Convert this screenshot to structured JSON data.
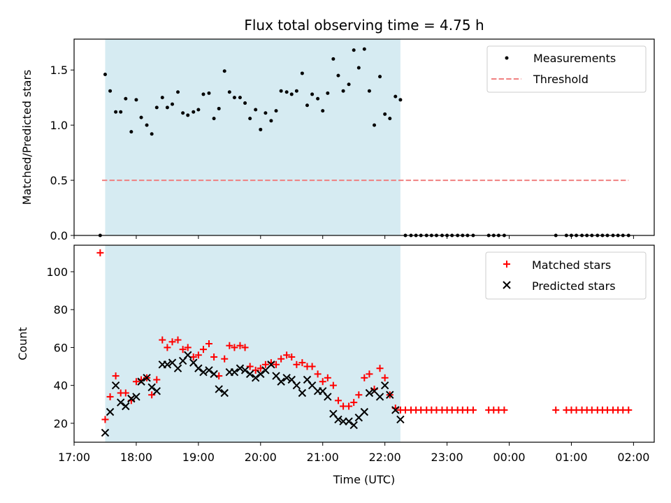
{
  "chart_data": [
    {
      "type": "scatter",
      "title": "Flux total observing time = 4.75 h",
      "xlabel": "",
      "ylabel": "Matched/Predicted stars",
      "ylim": [
        0,
        1.78
      ],
      "yticks": [
        0.0,
        0.5,
        1.0,
        1.5
      ],
      "ytick_labels": [
        "0.0",
        "0.5",
        "1.0",
        "1.5"
      ],
      "xlim_hours": [
        17.0,
        26.333
      ],
      "shaded_region_hours": [
        17.5,
        22.25
      ],
      "legend": [
        "Measurements",
        "Threshold"
      ],
      "legend_position": "top-right",
      "threshold": {
        "value": 0.5,
        "x_range_hours": [
          17.45,
          25.92
        ],
        "color": "#f08080"
      },
      "series": [
        {
          "name": "Measurements",
          "color": "#000000",
          "x_hours": [
            17.42,
            17.5,
            17.58,
            17.67,
            17.75,
            17.83,
            17.92,
            18.0,
            18.08,
            18.17,
            18.25,
            18.33,
            18.42,
            18.5,
            18.58,
            18.67,
            18.75,
            18.83,
            18.92,
            19.0,
            19.08,
            19.17,
            19.25,
            19.33,
            19.42,
            19.5,
            19.58,
            19.67,
            19.75,
            19.83,
            19.92,
            20.0,
            20.08,
            20.17,
            20.25,
            20.33,
            20.42,
            20.5,
            20.58,
            20.67,
            20.75,
            20.83,
            20.92,
            21.0,
            21.08,
            21.17,
            21.25,
            21.33,
            21.42,
            21.5,
            21.58,
            21.67,
            21.75,
            21.83,
            21.92,
            22.0,
            22.08,
            22.17,
            22.25,
            22.33,
            22.42,
            22.5,
            22.58,
            22.67,
            22.75,
            22.83,
            22.92,
            23.0,
            23.08,
            23.17,
            23.25,
            23.33,
            23.42,
            23.67,
            23.75,
            23.83,
            23.92,
            24.75,
            24.92,
            25.0,
            25.08,
            25.17,
            25.25,
            25.33,
            25.42,
            25.5,
            25.58,
            25.67,
            25.75,
            25.83,
            25.92
          ],
          "y": [
            0.0,
            1.46,
            1.31,
            1.12,
            1.12,
            1.24,
            0.94,
            1.23,
            1.07,
            1.0,
            0.92,
            1.16,
            1.25,
            1.16,
            1.19,
            1.3,
            1.11,
            1.09,
            1.12,
            1.14,
            1.28,
            1.29,
            1.06,
            1.15,
            1.49,
            1.3,
            1.25,
            1.25,
            1.2,
            1.06,
            1.14,
            0.96,
            1.11,
            1.04,
            1.13,
            1.31,
            1.3,
            1.28,
            1.31,
            1.47,
            1.18,
            1.28,
            1.24,
            1.13,
            1.29,
            1.6,
            1.45,
            1.31,
            1.37,
            1.68,
            1.52,
            1.69,
            1.31,
            1.0,
            1.44,
            1.1,
            1.06,
            1.26,
            1.23,
            0.0,
            0.0,
            0.0,
            0.0,
            0.0,
            0.0,
            0.0,
            0.0,
            0.0,
            0.0,
            0.0,
            0.0,
            0.0,
            0.0,
            0.0,
            0.0,
            0.0,
            0.0,
            0.0,
            0.0,
            0.0,
            0.0,
            0.0,
            0.0,
            0.0,
            0.0,
            0.0,
            0.0,
            0.0,
            0.0,
            0.0,
            0.0
          ]
        }
      ]
    },
    {
      "type": "scatter",
      "title": "",
      "xlabel": "Time (UTC)",
      "ylabel": "Count",
      "ylim": [
        10,
        114
      ],
      "yticks": [
        20,
        40,
        60,
        80,
        100
      ],
      "ytick_labels": [
        "20",
        "40",
        "60",
        "80",
        "100"
      ],
      "xlim_hours": [
        17.0,
        26.333
      ],
      "xticks_hours": [
        17,
        18,
        19,
        20,
        21,
        22,
        23,
        24,
        25,
        26
      ],
      "xtick_labels": [
        "17:00",
        "18:00",
        "19:00",
        "20:00",
        "21:00",
        "22:00",
        "23:00",
        "00:00",
        "01:00",
        "02:00"
      ],
      "shaded_region_hours": [
        17.5,
        22.25
      ],
      "legend": [
        "Matched stars",
        "Predicted stars"
      ],
      "legend_position": "top-right",
      "series": [
        {
          "name": "Matched stars",
          "marker": "plus",
          "color": "#ff0000",
          "x_hours": [
            17.42,
            17.5,
            17.58,
            17.67,
            17.75,
            17.83,
            17.92,
            18.0,
            18.08,
            18.17,
            18.25,
            18.33,
            18.42,
            18.5,
            18.58,
            18.67,
            18.75,
            18.83,
            18.92,
            19.0,
            19.08,
            19.17,
            19.25,
            19.33,
            19.42,
            19.5,
            19.58,
            19.67,
            19.75,
            19.83,
            19.92,
            20.0,
            20.08,
            20.17,
            20.25,
            20.33,
            20.42,
            20.5,
            20.58,
            20.67,
            20.75,
            20.83,
            20.92,
            21.0,
            21.08,
            21.17,
            21.25,
            21.33,
            21.42,
            21.5,
            21.58,
            21.67,
            21.75,
            21.83,
            21.92,
            22.0,
            22.08,
            22.17,
            22.25,
            22.33,
            22.42,
            22.5,
            22.58,
            22.67,
            22.75,
            22.83,
            22.92,
            23.0,
            23.08,
            23.17,
            23.25,
            23.33,
            23.42,
            23.67,
            23.75,
            23.83,
            23.92,
            24.75,
            24.92,
            25.0,
            25.08,
            25.17,
            25.25,
            25.33,
            25.42,
            25.5,
            25.58,
            25.67,
            25.75,
            25.83,
            25.92
          ],
          "y": [
            110,
            22,
            34,
            45,
            36,
            36,
            32,
            42,
            43,
            44,
            35,
            43,
            64,
            60,
            63,
            64,
            59,
            60,
            55,
            56,
            59,
            62,
            55,
            45,
            54,
            61,
            60,
            61,
            60,
            50,
            48,
            49,
            51,
            52,
            51,
            54,
            56,
            55,
            51,
            52,
            50,
            50,
            46,
            42,
            44,
            40,
            32,
            29,
            29,
            31,
            35,
            44,
            46,
            38,
            49,
            44,
            35,
            28,
            27,
            27,
            27,
            27,
            27,
            27,
            27,
            27,
            27,
            27,
            27,
            27,
            27,
            27,
            27,
            27,
            27,
            27,
            27,
            27,
            27,
            27,
            27,
            27,
            27,
            27,
            27,
            27,
            27,
            27,
            27,
            27,
            27
          ]
        },
        {
          "name": "Predicted stars",
          "marker": "x",
          "color": "#000000",
          "x_hours": [
            17.5,
            17.58,
            17.67,
            17.75,
            17.83,
            17.92,
            18.0,
            18.08,
            18.17,
            18.25,
            18.33,
            18.42,
            18.5,
            18.58,
            18.67,
            18.75,
            18.83,
            18.92,
            19.0,
            19.08,
            19.17,
            19.25,
            19.33,
            19.42,
            19.5,
            19.58,
            19.67,
            19.75,
            19.83,
            19.92,
            20.0,
            20.08,
            20.17,
            20.25,
            20.33,
            20.42,
            20.5,
            20.58,
            20.67,
            20.75,
            20.83,
            20.92,
            21.0,
            21.08,
            21.17,
            21.25,
            21.33,
            21.42,
            21.5,
            21.58,
            21.67,
            21.75,
            21.83,
            21.92,
            22.0,
            22.08,
            22.17,
            22.25
          ],
          "y": [
            15,
            26,
            40,
            31,
            29,
            33,
            34,
            42,
            44,
            39,
            37,
            51,
            51,
            52,
            49,
            53,
            56,
            52,
            49,
            47,
            48,
            46,
            38,
            36,
            47,
            47,
            49,
            48,
            46,
            44,
            46,
            48,
            51,
            45,
            42,
            44,
            43,
            40,
            36,
            43,
            40,
            37,
            37,
            34,
            25,
            22,
            21,
            21,
            19,
            23,
            26,
            36,
            37,
            34,
            40,
            35,
            27,
            22
          ]
        }
      ]
    }
  ]
}
